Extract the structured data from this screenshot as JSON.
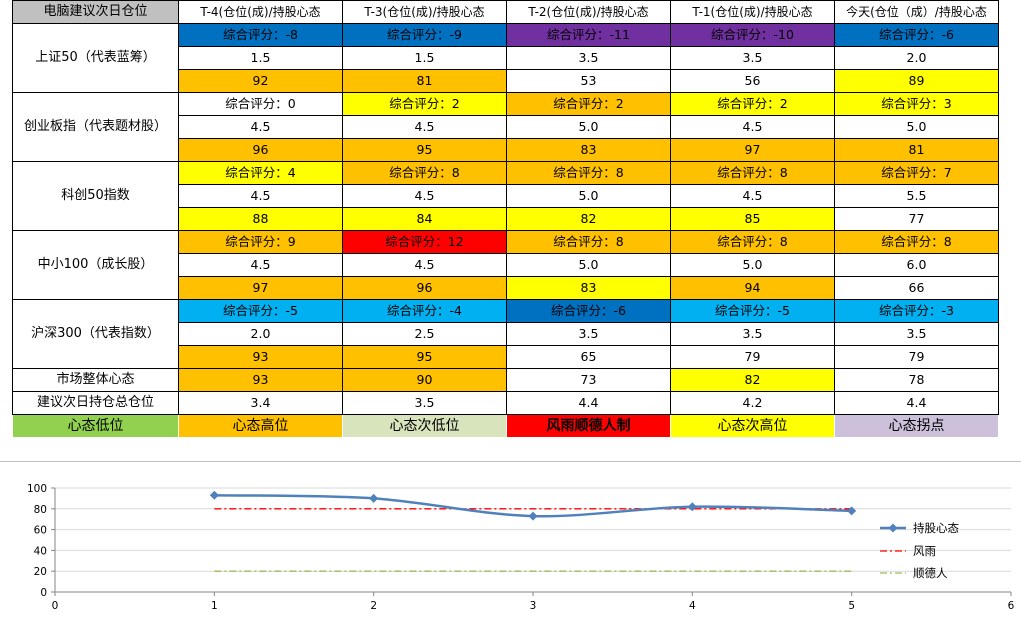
{
  "table": {
    "corner": "电脑建议次日仓位",
    "columns": [
      "T-4(仓位(成)/持股心态",
      "T-3(仓位(成)/持股心态",
      "T-2(仓位(成)/持股心态",
      "T-1(仓位(成)/持股心态",
      "今天(仓位（成）/持股心态"
    ],
    "groups": [
      {
        "name": "上证50（代表蓝筹）",
        "rows": [
          [
            "综合评分：-8",
            "综合评分：-9",
            "综合评分：-11",
            "综合评分：-10",
            "综合评分：-6"
          ],
          [
            "1.5",
            "1.5",
            "3.5",
            "3.5",
            "2.0"
          ],
          [
            "92",
            "81",
            "53",
            "56",
            "89"
          ]
        ],
        "colors": [
          [
            "#0070c0",
            "#0070c0",
            "#7030a0",
            "#7030a0",
            "#0070c0"
          ],
          [
            "#ffffff",
            "#ffffff",
            "#ffffff",
            "#ffffff",
            "#ffffff"
          ],
          [
            "#ffc000",
            "#ffc000",
            "#ffffff",
            "#ffffff",
            "#ffff00"
          ]
        ]
      },
      {
        "name": "创业板指（代表题材股）",
        "rows": [
          [
            "综合评分：0",
            "综合评分：2",
            "综合评分：2",
            "综合评分：2",
            "综合评分：3"
          ],
          [
            "4.5",
            "4.5",
            "5.0",
            "4.5",
            "5.0"
          ],
          [
            "96",
            "95",
            "83",
            "97",
            "81"
          ]
        ],
        "colors": [
          [
            "#ffffff",
            "#ffff00",
            "#ffc000",
            "#ffff00",
            "#ffff00"
          ],
          [
            "#ffffff",
            "#ffffff",
            "#ffffff",
            "#ffffff",
            "#ffffff"
          ],
          [
            "#ffc000",
            "#ffc000",
            "#ffc000",
            "#ffc000",
            "#ffc000"
          ]
        ]
      },
      {
        "name": "科创50指数",
        "rows": [
          [
            "综合评分：4",
            "综合评分：8",
            "综合评分：8",
            "综合评分：8",
            "综合评分：7"
          ],
          [
            "4.5",
            "4.5",
            "5.0",
            "4.5",
            "5.5"
          ],
          [
            "88",
            "84",
            "82",
            "85",
            "77"
          ]
        ],
        "colors": [
          [
            "#ffff00",
            "#ffc000",
            "#ffc000",
            "#ffc000",
            "#ffc000"
          ],
          [
            "#ffffff",
            "#ffffff",
            "#ffffff",
            "#ffffff",
            "#ffffff"
          ],
          [
            "#ffff00",
            "#ffff00",
            "#ffff00",
            "#ffff00",
            "#ffffff"
          ]
        ]
      },
      {
        "name": "中小100（成长股）",
        "rows": [
          [
            "综合评分：9",
            "综合评分：12",
            "综合评分：8",
            "综合评分：8",
            "综合评分：8"
          ],
          [
            "4.5",
            "4.5",
            "5.0",
            "5.0",
            "6.0"
          ],
          [
            "97",
            "96",
            "83",
            "94",
            "66"
          ]
        ],
        "colors": [
          [
            "#ffc000",
            "#ff0000",
            "#ffc000",
            "#ffc000",
            "#ffc000"
          ],
          [
            "#ffffff",
            "#ffffff",
            "#ffffff",
            "#ffffff",
            "#ffffff"
          ],
          [
            "#ffc000",
            "#ffc000",
            "#ffff00",
            "#ffc000",
            "#ffffff"
          ]
        ]
      },
      {
        "name": "沪深300（代表指数）",
        "rows": [
          [
            "综合评分：-5",
            "综合评分：-4",
            "综合评分：-6",
            "综合评分：-5",
            "综合评分：-3"
          ],
          [
            "2.0",
            "2.5",
            "3.5",
            "3.5",
            "3.5"
          ],
          [
            "93",
            "95",
            "65",
            "79",
            "79"
          ]
        ],
        "colors": [
          [
            "#00b0f0",
            "#00b0f0",
            "#0070c0",
            "#00b0f0",
            "#00b0f0"
          ],
          [
            "#ffffff",
            "#ffffff",
            "#ffffff",
            "#ffffff",
            "#ffffff"
          ],
          [
            "#ffc000",
            "#ffc000",
            "#ffffff",
            "#ffffff",
            "#ffffff"
          ]
        ]
      }
    ],
    "market_row": {
      "label": "市场整体心态",
      "values": [
        "93",
        "90",
        "73",
        "82",
        "78"
      ],
      "colors": [
        "#ffc000",
        "#ffc000",
        "#ffffff",
        "#ffff00",
        "#ffffff"
      ]
    },
    "position_row": {
      "label": "建议次日持仓总仓位",
      "values": [
        "3.4",
        "3.5",
        "4.4",
        "4.2",
        "4.4"
      ]
    },
    "legend_row": {
      "labels": [
        "心态低位",
        "心态高位",
        "心态次低位",
        "风雨顺德人制",
        "心态次高位",
        "心态拐点"
      ],
      "colors": [
        "#92d050",
        "#ffc000",
        "#d8e4bc",
        "#ff0000",
        "#ffff00",
        "#ccc0da"
      ],
      "bold": [
        false,
        false,
        false,
        true,
        false,
        false
      ]
    }
  },
  "chart_data": {
    "type": "line",
    "x": [
      1,
      2,
      3,
      4,
      5
    ],
    "xlim": [
      0,
      6
    ],
    "ylim": [
      0,
      100
    ],
    "xticks": [
      0,
      1,
      2,
      3,
      4,
      5,
      6
    ],
    "yticks": [
      0,
      20,
      40,
      60,
      80,
      100
    ],
    "series": [
      {
        "name": "持股心态",
        "values": [
          93,
          90,
          73,
          82,
          78
        ],
        "color": "#4f81bd",
        "style": "smooth-diamond"
      },
      {
        "name": "风雨",
        "values": [
          80,
          80,
          80,
          80,
          80
        ],
        "color": "#ff0000",
        "style": "dash-dot"
      },
      {
        "name": "顺德人",
        "values": [
          20,
          20,
          20,
          20,
          20
        ],
        "color": "#9bbb59",
        "style": "dash-dot"
      }
    ],
    "legend_position": "right"
  }
}
